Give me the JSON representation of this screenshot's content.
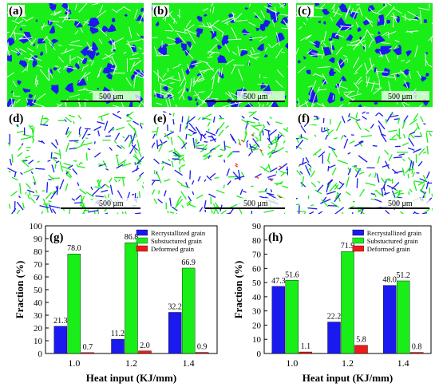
{
  "micrographs": [
    {
      "label": "(a)",
      "scale": "500 μm",
      "style": "dense"
    },
    {
      "label": "(b)",
      "scale": "500 μm",
      "style": "dense"
    },
    {
      "label": "(c)",
      "scale": "500 μm",
      "style": "dense"
    },
    {
      "label": "(d)",
      "scale": "500 μm",
      "style": "sparse"
    },
    {
      "label": "(e)",
      "scale": "500 μm",
      "style": "sparse"
    },
    {
      "label": "(f)",
      "scale": "500 μm",
      "style": "sparse"
    }
  ],
  "colors": {
    "recrystallized": "#1a1aee",
    "substructured": "#19ee19",
    "deformed": "#ee1a1a",
    "grain_boundary": "#ffffff"
  },
  "chart_data": [
    {
      "panel_label": "(g)",
      "type": "bar",
      "categories": [
        "1.0",
        "1.2",
        "1.4"
      ],
      "series": [
        {
          "name": "Recrystallized grain",
          "values": [
            21.3,
            11.2,
            32.2
          ],
          "color": "#1a1aee"
        },
        {
          "name": "Substuctured grain",
          "values": [
            78.0,
            86.8,
            66.9
          ],
          "color": "#19ee19"
        },
        {
          "name": "Deformed grain",
          "values": [
            0.7,
            2.0,
            0.9
          ],
          "color": "#ee1a1a"
        }
      ],
      "xlabel": "Heat input (KJ/mm)",
      "ylabel": "Fraction (%)",
      "ylim": [
        0,
        100
      ],
      "yticks": [
        0,
        10,
        20,
        30,
        40,
        50,
        60,
        70,
        80,
        90,
        100
      ],
      "data_labels": true,
      "legend_position": "top-right",
      "grid": false
    },
    {
      "panel_label": "(h)",
      "type": "bar",
      "categories": [
        "1.0",
        "1.2",
        "1.4"
      ],
      "series": [
        {
          "name": "Recrystallized grain",
          "values": [
            47.3,
            22.2,
            48.0
          ],
          "color": "#1a1aee"
        },
        {
          "name": "Substuctured grain",
          "values": [
            51.6,
            71.9,
            51.2
          ],
          "color": "#19ee19"
        },
        {
          "name": "Deformed grain",
          "values": [
            1.1,
            5.8,
            0.8
          ],
          "color": "#ee1a1a"
        }
      ],
      "xlabel": "Heat input (KJ/mm)",
      "ylabel": "Fraction (%)",
      "ylim": [
        0,
        90
      ],
      "yticks": [
        0,
        10,
        20,
        30,
        40,
        50,
        60,
        70,
        80,
        90
      ],
      "data_labels": true,
      "legend_position": "top-right",
      "grid": false
    }
  ]
}
